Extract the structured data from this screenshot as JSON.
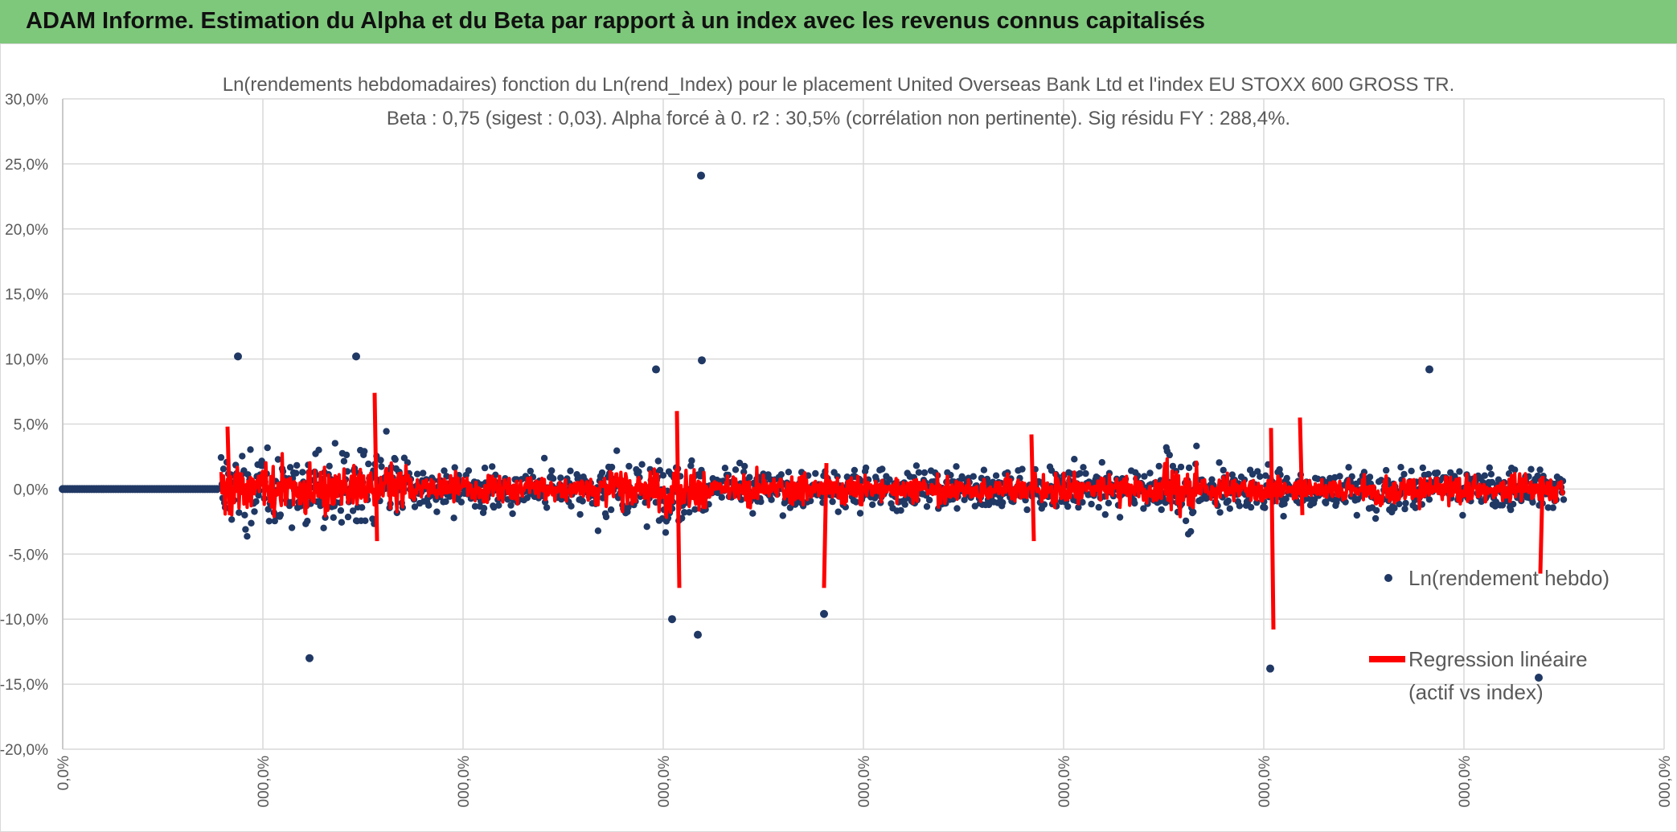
{
  "banner": {
    "title": "ADAM Informe. Estimation du Alpha et du Beta par rapport à un index avec les revenus connus capitalisés"
  },
  "colors": {
    "banner": "#7ec87b",
    "scatter": "#203864",
    "regression": "#ff0000",
    "grid": "#d9d9d9",
    "axis_text": "#595959",
    "corner": "#f2b81f"
  },
  "chart_data": {
    "type": "scatter",
    "title": "Ln(rendements hebdomadaires) fonction du Ln(rend_Index) pour le placement United Overseas Bank Ltd  et l'index EU STOXX 600 GROSS TR.",
    "subtitle": "Beta : 0,75 (sigest : 0,03). Alpha forcé à 0. r2 : 30,5% (corrélation non pertinente). Sig résidu FY : 288,4%.",
    "y_axis": {
      "min": -20,
      "max": 30,
      "step": 5,
      "tick_labels": [
        "-20,0%",
        "-15,0%",
        "-10,0%",
        "-5,0%",
        "0,0%",
        "5,0%",
        "10,0%",
        "15,0%",
        "20,0%",
        "25,0%",
        "30,0%"
      ]
    },
    "x_axis": {
      "tick_labels": [
        "0,0%",
        "000,0%",
        "000,0%",
        "000,0%",
        "000,0%",
        "000,0%",
        "000,0%",
        "000,0%",
        "000,0%"
      ]
    },
    "legend_placement": "right",
    "series": [
      {
        "name": "Ln(rendement hebdo)",
        "kind": "scatter",
        "color": "#203864",
        "points_estimated": 1650,
        "y_range": [
          -14.5,
          24.2
        ]
      },
      {
        "name": "Regression linéaire (actif vs index)",
        "kind": "line",
        "color": "#ff0000",
        "y_range": [
          -11,
          7.5
        ]
      }
    ],
    "legend": {
      "scatter_label": "Ln(rendement hebdo)",
      "regression_line1": "Regression linéaire",
      "regression_line2": "(actif vs index)"
    },
    "notable_points": [
      {
        "y": 24.1
      },
      {
        "y": 10.2
      },
      {
        "y": 10.2
      },
      {
        "y": 9.9
      },
      {
        "y": 9.2
      },
      {
        "y": 9.2
      },
      {
        "y": -13.0
      },
      {
        "y": -11.2
      },
      {
        "y": -10.0
      },
      {
        "y": -9.6
      },
      {
        "y": -13.8
      },
      {
        "y": -14.5
      }
    ]
  }
}
